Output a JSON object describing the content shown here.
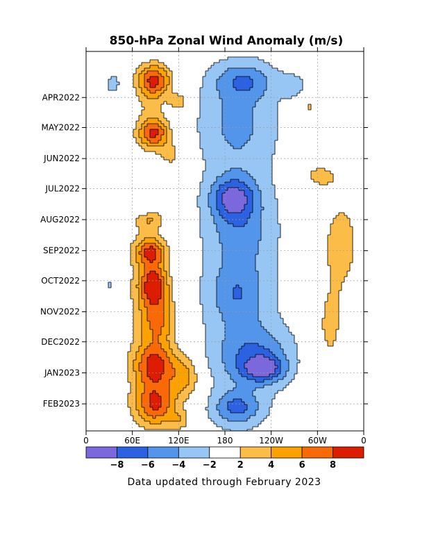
{
  "chart_data": {
    "type": "heatmap",
    "title": "850-hPa Zonal Wind Anomaly (m/s)",
    "xlabel": "",
    "ylabel": "",
    "x_ticks": [
      {
        "lon": 0,
        "label": "0"
      },
      {
        "lon": 60,
        "label": "60E"
      },
      {
        "lon": 120,
        "label": "120E"
      },
      {
        "lon": 180,
        "label": "180"
      },
      {
        "lon": 240,
        "label": "120W"
      },
      {
        "lon": 300,
        "label": "60W"
      },
      {
        "lon": 360,
        "label": "0"
      }
    ],
    "xlim": [
      0,
      360
    ],
    "time_range": [
      "2022-02-14",
      "2023-02-28"
    ],
    "y_ticks": [
      {
        "date": "2022-04-01",
        "label": "APR2022"
      },
      {
        "date": "2022-05-01",
        "label": "MAY2022"
      },
      {
        "date": "2022-06-01",
        "label": "JUN2022"
      },
      {
        "date": "2022-07-01",
        "label": "JUL2022"
      },
      {
        "date": "2022-08-01",
        "label": "AUG2022"
      },
      {
        "date": "2022-09-01",
        "label": "SEP2022"
      },
      {
        "date": "2022-10-01",
        "label": "OCT2022"
      },
      {
        "date": "2022-11-01",
        "label": "NOV2022"
      },
      {
        "date": "2022-12-01",
        "label": "DEC2022"
      },
      {
        "date": "2023-01-01",
        "label": "JAN2023"
      },
      {
        "date": "2023-02-01",
        "label": "FEB2023"
      }
    ],
    "grid": true,
    "contour_levels": [
      -8,
      -6,
      -4,
      -2,
      2,
      4,
      6,
      8
    ],
    "colorbar": {
      "colors": [
        "#7b68dd",
        "#2c62e2",
        "#5495ec",
        "#97c6f4",
        "#ffffff",
        "#fcbc48",
        "#fba200",
        "#f96a07",
        "#dd1d00"
      ],
      "labels": [
        "−8",
        "−6",
        "−4",
        "−2",
        "2",
        "4",
        "6",
        "8"
      ]
    },
    "anomaly_regions": [
      {
        "lon": 88,
        "date": "2022-03-15",
        "dlon": 22,
        "days": 16,
        "value": 8
      },
      {
        "lon": 120,
        "date": "2022-04-05",
        "dlon": 12,
        "days": 8,
        "value": 4
      },
      {
        "lon": 88,
        "date": "2022-05-07",
        "dlon": 20,
        "days": 14,
        "value": 7
      },
      {
        "lon": 110,
        "date": "2022-05-28",
        "dlon": 12,
        "days": 12,
        "value": 3
      },
      {
        "lon": 82,
        "date": "2022-08-01",
        "dlon": 18,
        "days": 10,
        "value": 3.5
      },
      {
        "lon": 84,
        "date": "2022-09-02",
        "dlon": 20,
        "days": 14,
        "value": 7
      },
      {
        "lon": 88,
        "date": "2022-10-05",
        "dlon": 18,
        "days": 20,
        "value": 8
      },
      {
        "lon": 95,
        "date": "2022-11-10",
        "dlon": 22,
        "days": 24,
        "value": 5
      },
      {
        "lon": 90,
        "date": "2022-12-25",
        "dlon": 28,
        "days": 22,
        "value": 8
      },
      {
        "lon": 130,
        "date": "2023-01-05",
        "dlon": 20,
        "days": 22,
        "value": 4.5
      },
      {
        "lon": 90,
        "date": "2023-02-02",
        "dlon": 28,
        "days": 22,
        "value": 8
      },
      {
        "lon": 122,
        "date": "2023-02-18",
        "dlon": 14,
        "days": 10,
        "value": 3
      },
      {
        "lon": 80,
        "date": "2022-10-20",
        "dlon": 28,
        "days": 75,
        "value": 2.6
      },
      {
        "lon": 85,
        "date": "2022-04-20",
        "dlon": 22,
        "days": 40,
        "value": 2.2
      },
      {
        "lon": 205,
        "date": "2022-03-15",
        "dlon": 40,
        "days": 18,
        "value": -4
      },
      {
        "lon": 195,
        "date": "2022-04-25",
        "dlon": 50,
        "days": 45,
        "value": -3
      },
      {
        "lon": 190,
        "date": "2022-07-10",
        "dlon": 28,
        "days": 20,
        "value": -6
      },
      {
        "lon": 200,
        "date": "2022-08-10",
        "dlon": 40,
        "days": 40,
        "value": -3
      },
      {
        "lon": 195,
        "date": "2022-10-15",
        "dlon": 35,
        "days": 30,
        "value": -3.5
      },
      {
        "lon": 220,
        "date": "2022-12-15",
        "dlon": 50,
        "days": 30,
        "value": -4.5
      },
      {
        "lon": 230,
        "date": "2022-12-28",
        "dlon": 25,
        "days": 12,
        "value": -6
      },
      {
        "lon": 195,
        "date": "2023-02-05",
        "dlon": 30,
        "days": 16,
        "value": -5
      },
      {
        "lon": 200,
        "date": "2022-09-20",
        "dlon": 70,
        "days": 230,
        "value": -2.4
      },
      {
        "lon": 290,
        "date": "2022-04-10",
        "dlon": 10,
        "days": 12,
        "value": 2.6
      },
      {
        "lon": 285,
        "date": "2022-05-05",
        "dlon": 8,
        "days": 10,
        "value": 2.4
      },
      {
        "lon": 300,
        "date": "2022-06-18",
        "dlon": 28,
        "days": 14,
        "value": 2.6
      },
      {
        "lon": 330,
        "date": "2022-08-25",
        "dlon": 30,
        "days": 55,
        "value": 2.8
      },
      {
        "lon": 315,
        "date": "2022-11-20",
        "dlon": 22,
        "days": 45,
        "value": 2.4
      },
      {
        "lon": 35,
        "date": "2022-03-18",
        "dlon": 18,
        "days": 16,
        "value": -2.4
      },
      {
        "lon": 30,
        "date": "2022-10-05",
        "dlon": 12,
        "days": 12,
        "value": -2.2
      },
      {
        "lon": 75,
        "date": "2022-07-20",
        "dlon": 10,
        "days": 8,
        "value": -2.1
      },
      {
        "lon": 270,
        "date": "2022-03-20",
        "dlon": 18,
        "days": 14,
        "value": -2.2
      }
    ]
  },
  "footer": "Data updated through February 2023"
}
